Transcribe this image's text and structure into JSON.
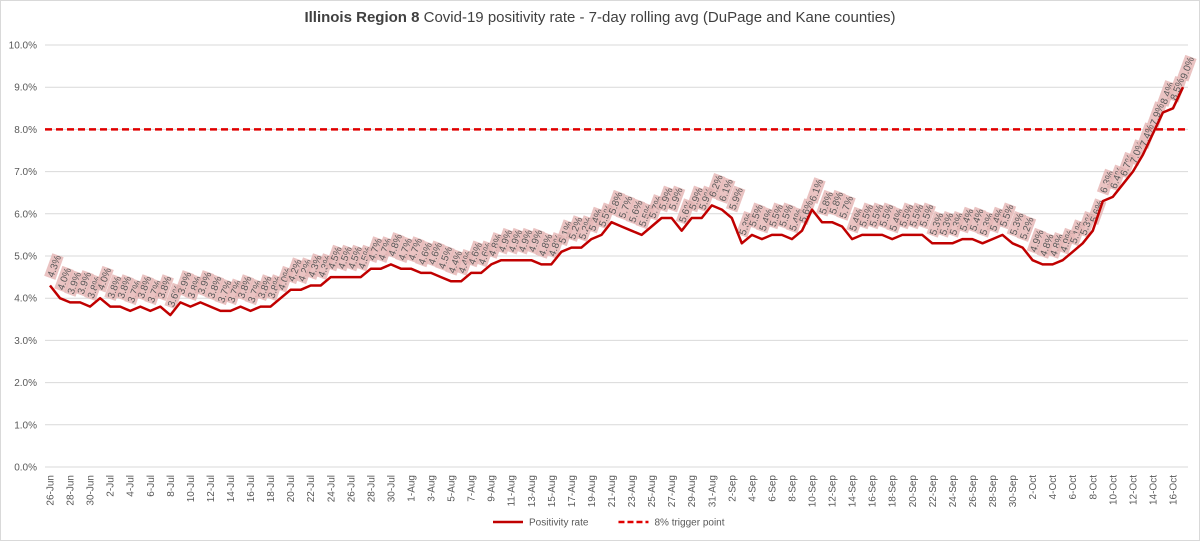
{
  "chart_data": {
    "type": "line",
    "title_parts": [
      "Illinois Region 8",
      " Covid-19 positivity rate - 7-day rolling avg (DuPage and Kane counties)"
    ],
    "categories": [
      "26-Jun",
      null,
      "28-Jun",
      null,
      "30-Jun",
      null,
      "2-Jul",
      null,
      "4-Jul",
      null,
      "6-Jul",
      null,
      "8-Jul",
      null,
      "10-Jul",
      null,
      "12-Jul",
      null,
      "14-Jul",
      null,
      "16-Jul",
      null,
      "18-Jul",
      null,
      "20-Jul",
      null,
      "22-Jul",
      null,
      "24-Jul",
      null,
      "26-Jul",
      null,
      "28-Jul",
      null,
      "30-Jul",
      null,
      "1-Aug",
      null,
      "3-Aug",
      null,
      "5-Aug",
      null,
      "7-Aug",
      null,
      "9-Aug",
      null,
      "11-Aug",
      null,
      "13-Aug",
      null,
      "15-Aug",
      null,
      "17-Aug",
      null,
      "19-Aug",
      null,
      "21-Aug",
      null,
      "23-Aug",
      null,
      "25-Aug",
      null,
      "27-Aug",
      null,
      "29-Aug",
      null,
      "31-Aug",
      null,
      "2-Sep",
      null,
      "4-Sep",
      null,
      "6-Sep",
      null,
      "8-Sep",
      null,
      "10-Sep",
      null,
      "12-Sep",
      null,
      "14-Sep",
      null,
      "16-Sep",
      null,
      "18-Sep",
      null,
      "20-Sep",
      null,
      "22-Sep",
      null,
      "24-Sep",
      null,
      "26-Sep",
      null,
      "28-Sep",
      null,
      "30-Sep",
      null,
      "2-Oct",
      null,
      "4-Oct",
      null,
      "6-Oct",
      null,
      "8-Oct",
      null,
      "10-Oct",
      null,
      "12-Oct",
      null,
      "14-Oct",
      null,
      "16-Oct",
      null
    ],
    "series": [
      {
        "name": "Positivity rate",
        "color": "#c00000",
        "values": [
          4.3,
          4.0,
          3.9,
          3.9,
          3.8,
          4.0,
          3.8,
          3.8,
          3.7,
          3.8,
          3.7,
          3.8,
          3.6,
          3.9,
          3.8,
          3.9,
          3.8,
          3.7,
          3.7,
          3.8,
          3.7,
          3.8,
          3.8,
          4.0,
          4.2,
          4.2,
          4.3,
          4.3,
          4.5,
          4.5,
          4.5,
          4.5,
          4.7,
          4.7,
          4.8,
          4.7,
          4.7,
          4.6,
          4.6,
          4.5,
          4.4,
          4.4,
          4.6,
          4.6,
          4.8,
          4.9,
          4.9,
          4.9,
          4.9,
          4.8,
          4.8,
          5.1,
          5.2,
          5.2,
          5.4,
          5.5,
          5.8,
          5.7,
          5.6,
          5.5,
          5.7,
          5.9,
          5.9,
          5.6,
          5.9,
          5.9,
          6.2,
          6.1,
          5.9,
          5.3,
          5.5,
          5.4,
          5.5,
          5.5,
          5.4,
          5.6,
          6.1,
          5.8,
          5.8,
          5.7,
          5.4,
          5.5,
          5.5,
          5.5,
          5.4,
          5.5,
          5.5,
          5.5,
          5.3,
          5.3,
          5.3,
          5.4,
          5.4,
          5.3,
          5.4,
          5.5,
          5.3,
          5.2,
          4.9,
          4.8,
          4.8,
          4.9,
          5.1,
          5.3,
          5.6,
          6.3,
          6.4,
          6.7,
          7.0,
          7.4,
          7.9,
          8.4,
          8.5,
          9.0
        ],
        "value_labels": [
          "4.3%",
          "4.0%",
          "3.9%",
          "3.9%",
          "3.8%",
          "4.0%",
          "3.8%",
          "3.8%",
          "3.7%",
          "3.8%",
          "3.7%",
          "3.8%",
          "3.6%",
          "3.9%",
          "3.8%",
          "3.9%",
          "3.8%",
          "3.7%",
          "3.7%",
          "3.8%",
          "3.7%",
          "3.8%",
          "3.8%",
          "4.0%",
          "4.2%",
          "4.2%",
          "4.3%",
          "4.3%",
          "4.5%",
          "4.5%",
          "4.5%",
          "4.5%",
          "4.7%",
          "4.7%",
          "4.8%",
          "4.7%",
          "4.7%",
          "4.6%",
          "4.6%",
          "4.5%",
          "4.4%",
          "4.4%",
          "4.6%",
          "4.6%",
          "4.8%",
          "4.9%",
          "4.9%",
          "4.9%",
          "4.9%",
          "4.8%",
          "4.8%",
          "5.1%",
          "5.2%",
          "5.2%",
          "5.4%",
          "5.5%",
          "5.8%",
          "5.7%",
          "5.6%",
          "5.5%",
          "5.7%",
          "5.9%",
          "5.9%",
          "5.6%",
          "5.9%",
          "5.9%",
          "6.2%",
          "6.1%",
          "5.9%",
          "5.3%",
          "5.5%",
          "5.4%",
          "5.5%",
          "5.5%",
          "5.4%",
          "5.6%",
          "6.1%",
          "5.8%",
          "5.8%",
          "5.7%",
          "5.4%",
          "5.5%",
          "5.5%",
          "5.5%",
          "5.4%",
          "5.5%",
          "5.5%",
          "5.5%",
          "5.3%",
          "5.3%",
          "5.3%",
          "5.4%",
          "5.4%",
          "5.3%",
          "5.4%",
          "5.5%",
          "5.3%",
          "5.2%",
          "4.9%",
          "4.8%",
          "4.8%",
          "4.9%",
          "5.1%",
          "5.3%",
          "5.6%",
          "6.3%",
          "6.4%",
          "6.7%",
          "7.0%",
          "7.4%",
          "7.9%",
          "8.4%",
          "8.5%",
          "9.0%"
        ]
      }
    ],
    "reference_lines": [
      {
        "name": "8% trigger point",
        "value": 8,
        "color": "#e00000",
        "dashed": true
      }
    ],
    "label_box_color": "#e6b8b7",
    "ylim": [
      0,
      10
    ],
    "yticks": [
      {
        "value": 0,
        "label": "0.0%"
      },
      {
        "value": 1,
        "label": "1.0%"
      },
      {
        "value": 2,
        "label": "2.0%"
      },
      {
        "value": 3,
        "label": "3.0%"
      },
      {
        "value": 4,
        "label": "4.0%"
      },
      {
        "value": 5,
        "label": "5.0%"
      },
      {
        "value": 6,
        "label": "6.0%"
      },
      {
        "value": 7,
        "label": "7.0%"
      },
      {
        "value": 8,
        "label": "8.0%"
      },
      {
        "value": 9,
        "label": "9.0%"
      },
      {
        "value": 10,
        "label": "10.0%"
      }
    ],
    "grid": true,
    "legend": "bottom"
  }
}
